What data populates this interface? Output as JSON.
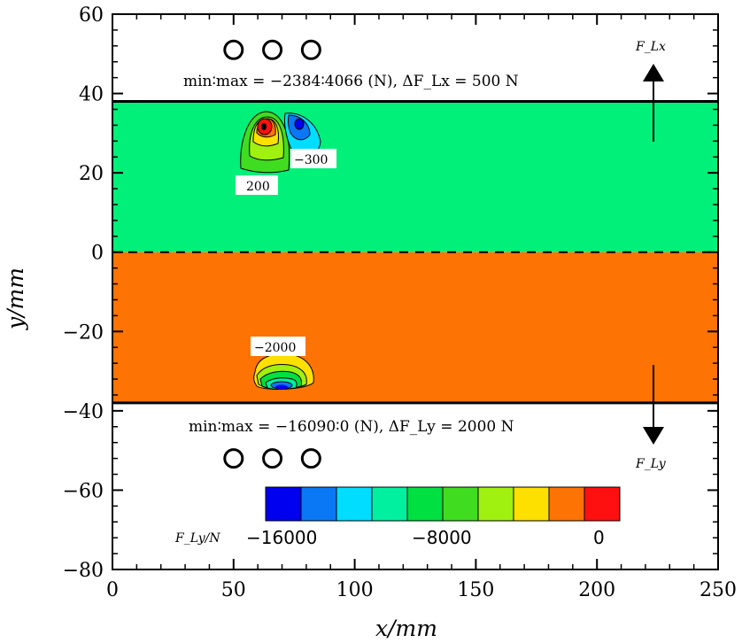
{
  "chart_data": {
    "type": "heatmap",
    "xlabel": "x/mm",
    "ylabel": "y/mm",
    "xlim": [
      0,
      250
    ],
    "ylim": [
      -80,
      60
    ],
    "x_ticks": [
      "0",
      "50",
      "100",
      "150",
      "200",
      "250"
    ],
    "y_ticks": [
      "60",
      "40",
      "20",
      "0",
      "−20",
      "−40",
      "−60",
      "−80"
    ],
    "x_tick_values": [
      0,
      50,
      100,
      150,
      200,
      250
    ],
    "y_tick_values": [
      60,
      40,
      20,
      0,
      -20,
      -40,
      -60,
      -80
    ],
    "band_upper": {
      "y_range": [
        0,
        38
      ],
      "fill": "#00f07a"
    },
    "band_lower": {
      "y_range": [
        -38,
        0
      ],
      "fill": "#fd7304"
    },
    "upper_annotation": "min∶max = −2384∶4066 (N), ΔF_Lx = 500 N",
    "lower_annotation": "min∶max = −16090∶0 (N), ΔF_Ly = 2000 N",
    "force_label_x": "F_Lx",
    "force_label_y": "F_Ly",
    "contour_labels": [
      "200",
      "−300",
      "−2000"
    ],
    "circles_upper": [
      {
        "x": 50,
        "y": 51
      },
      {
        "x": 66,
        "y": 51
      },
      {
        "x": 82,
        "y": 51
      }
    ],
    "circles_lower": [
      {
        "x": 50,
        "y": -52
      },
      {
        "x": 66,
        "y": -52
      },
      {
        "x": 82,
        "y": -52
      }
    ],
    "colorbar": {
      "label": "F_Ly/N",
      "tick_labels": [
        "−16000",
        "−8000",
        "0"
      ],
      "colors": [
        "#0000f0",
        "#0a78f5",
        "#00ddff",
        "#00f0a0",
        "#00e040",
        "#40dc20",
        "#a0f010",
        "#fde000",
        "#fd7304",
        "#ff1010"
      ]
    }
  }
}
